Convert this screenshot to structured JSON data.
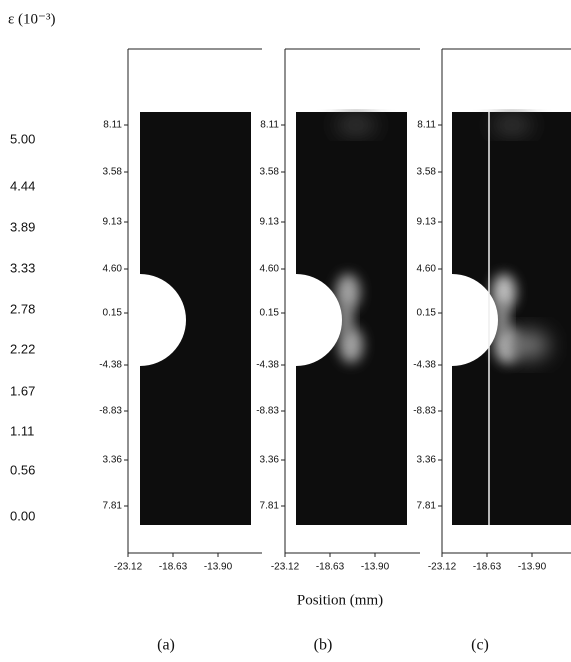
{
  "colorbar": {
    "label": "ε (10⁻³)",
    "ticks": [
      "5.00",
      "4.44",
      "3.89",
      "3.33",
      "2.78",
      "2.22",
      "1.67",
      "1.11",
      "0.56",
      "0.00"
    ]
  },
  "y_labels": [
    "8.11",
    "3.58",
    "9.13",
    "4.60",
    "0.15",
    "-4.38",
    "-8.83",
    "3.36",
    "7.81"
  ],
  "panels": [
    {
      "label": "(a)",
      "x_labels": [
        "-23.12",
        "-18.63",
        "-13.90"
      ]
    },
    {
      "label": "(b)",
      "x_labels": [
        "-23.12",
        "-18.63",
        "-13.90"
      ]
    },
    {
      "label": "(c)",
      "x_labels": [
        "-23.12",
        "-18.63",
        "-13.90"
      ]
    }
  ],
  "x_axis_label": "Position (mm)"
}
